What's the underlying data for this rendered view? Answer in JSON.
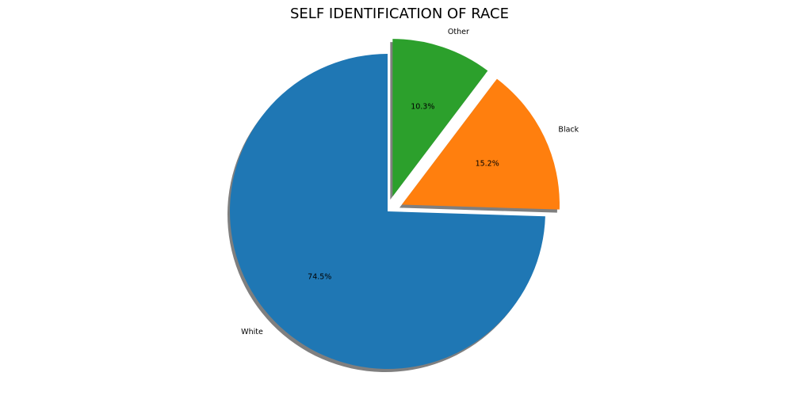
{
  "chart_data": {
    "type": "pie",
    "title": "SELF IDENTIFICATION OF RACE",
    "labels": [
      "White",
      "Black",
      "Other"
    ],
    "percent_labels": [
      "74.5%",
      "15.2%",
      "10.3%"
    ],
    "values": [
      74.5,
      15.2,
      10.3
    ],
    "colors": [
      "#1f77b4",
      "#ff7f0e",
      "#2ca02c"
    ],
    "exploded": [
      false,
      true,
      true
    ],
    "start_angle_deg": 90,
    "direction": "counterclockwise",
    "shadow": true
  }
}
